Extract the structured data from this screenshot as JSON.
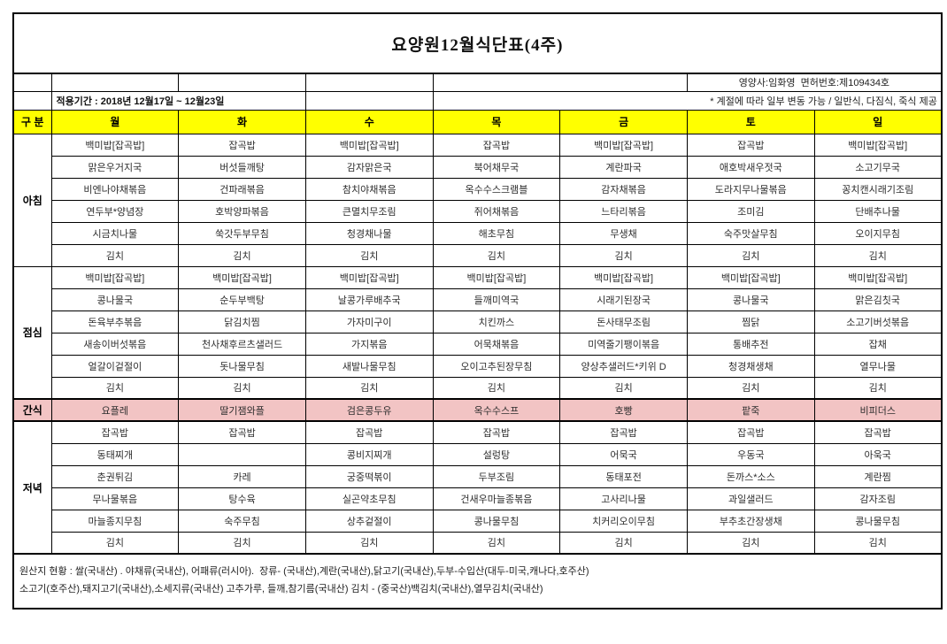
{
  "title": "요양원12월식단표(4주)",
  "nutritionist": "영양사:임화영  면허번호:제109434호",
  "period": "적용기간 : 2018년 12월17일 ~ 12월23일",
  "note": "* 계절에 따라 일부 변동 가능 / 일반식, 다짐식, 죽식 제공",
  "columns": {
    "category": "구 분",
    "days": [
      "월",
      "화",
      "수",
      "목",
      "금",
      "토",
      "일"
    ]
  },
  "sections": [
    {
      "id": "breakfast",
      "label": "아침",
      "rows": [
        [
          "백미밥[잡곡밥]",
          "잡곡밥",
          "백미밥[잡곡밥]",
          "잡곡밥",
          "백미밥[잡곡밥]",
          "잡곡밥",
          "백미밥[잡곡밥]"
        ],
        [
          "맑은우거지국",
          "버섯들깨탕",
          "감자맑은국",
          "북어채무국",
          "계란파국",
          "애호박새우젓국",
          "소고기무국"
        ],
        [
          "비엔나야채볶음",
          "건파래볶음",
          "참치야채볶음",
          "옥수수스크램블",
          "감자채볶음",
          "도라지무나물볶음",
          "꽁치캔시래기조림"
        ],
        [
          "연두부*양념장",
          "호박양파볶음",
          "큰멸치무조림",
          "쥐어채볶음",
          "느타리볶음",
          "조미김",
          "단배추나물"
        ],
        [
          "시금치나물",
          "쑥갓두부무침",
          "청경채나물",
          "해초무침",
          "무생채",
          "숙주맛살무침",
          "오이지무침"
        ],
        [
          "김치",
          "김치",
          "김치",
          "김치",
          "김치",
          "김치",
          "김치"
        ]
      ]
    },
    {
      "id": "lunch",
      "label": "점심",
      "rows": [
        [
          "백미밥[잡곡밥]",
          "백미밥[잡곡밥]",
          "백미밥[잡곡밥]",
          "백미밥[잡곡밥]",
          "백미밥[잡곡밥]",
          "백미밥[잡곡밥]",
          "백미밥[잡곡밥]"
        ],
        [
          "콩나물국",
          "순두부백탕",
          "날콩가루배추국",
          "들깨미역국",
          "시래기된장국",
          "콩나물국",
          "맑은김칫국"
        ],
        [
          "돈육부추볶음",
          "닭김치찜",
          "가자미구이",
          "치킨까스",
          "돈사태무조림",
          "찜닭",
          "소고기버섯볶음"
        ],
        [
          "새송이버섯볶음",
          "천사채후르츠샐러드",
          "가지볶음",
          "어묵채볶음",
          "미역줄기팽이볶음",
          "통배추전",
          "잡채"
        ],
        [
          "얼갈이겉절이",
          "돗나물무침",
          "새발나물무침",
          "오이고추된장무침",
          "양상추샐러드*키위 D",
          "청경채생채",
          "열무나물"
        ],
        [
          "김치",
          "김치",
          "김치",
          "김치",
          "김치",
          "김치",
          "김치"
        ]
      ]
    },
    {
      "id": "snack",
      "label": "간식",
      "rows": [
        [
          "요플레",
          "딸기잼와플",
          "검은콩두유",
          "옥수수스프",
          "호빵",
          "팥죽",
          "비피더스"
        ]
      ]
    },
    {
      "id": "dinner",
      "label": "저녁",
      "rows": [
        [
          "잡곡밥",
          "잡곡밥",
          "잡곡밥",
          "잡곡밥",
          "잡곡밥",
          "잡곡밥",
          "잡곡밥"
        ],
        [
          "동태찌개",
          "",
          "콩비지찌개",
          "설렁탕",
          "어묵국",
          "우동국",
          "아욱국"
        ],
        [
          "춘권튀김",
          "카레",
          "궁중떡볶이",
          "두부조림",
          "동태포전",
          "돈까스*소스",
          "계란찜"
        ],
        [
          "무나물볶음",
          "탕수육",
          "실곤약초무침",
          "건새우마늘종볶음",
          "고사리나물",
          "과일샐러드",
          "감자조림"
        ],
        [
          "마늘종지무침",
          "숙주무침",
          "상추겉절이",
          "콩나물무침",
          "치커리오이무침",
          "부추초간장생채",
          "콩나물무침"
        ],
        [
          "김치",
          "김치",
          "김치",
          "김치",
          "김치",
          "김치",
          "김치"
        ]
      ]
    }
  ],
  "footer_lines": [
    "원산지 현황 : 쌀(국내산) . 야채류(국내산), 어패류(러시아).  장류- (국내산),계란(국내산),닭고기(국내산),두부-수입산(대두-미국,캐나다,호주산)",
    "소고기(호주산),돼지고기(국내산),소세지류(국내산) 고추가루, 들깨,참기름(국내산) 김치 - (중국산)백김치(국내산),열무김치(국내산)"
  ],
  "colors": {
    "day_header_bg": "#FFFF00",
    "snack_row_bg": "#F2C4C4",
    "border": "#000000"
  }
}
